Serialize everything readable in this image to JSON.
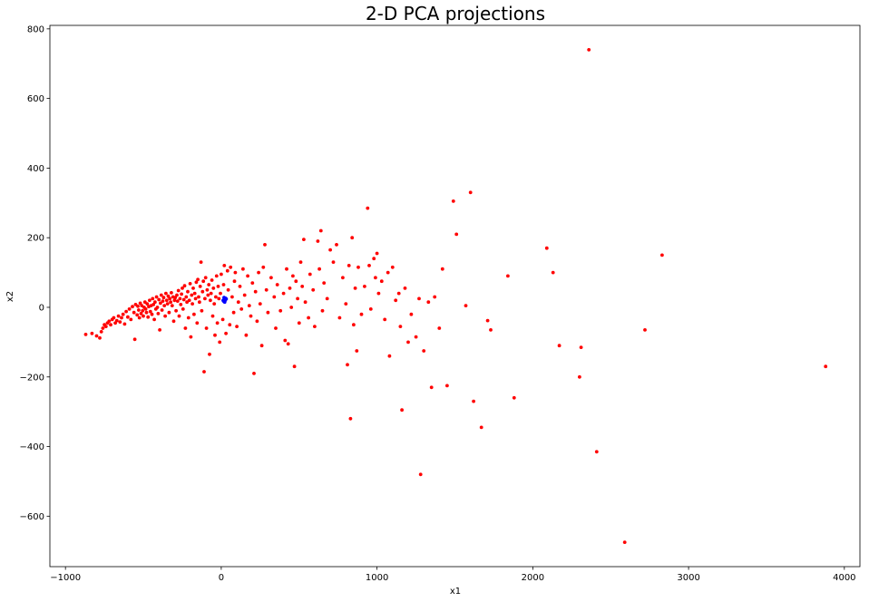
{
  "chart_data": {
    "type": "scatter",
    "title": "2-D PCA projections",
    "xlabel": "x1",
    "ylabel": "x2",
    "xlim": [
      -1100,
      4100
    ],
    "ylim": [
      -745,
      810
    ],
    "xticks": [
      -1000,
      0,
      1000,
      2000,
      3000,
      4000
    ],
    "yticks": [
      -600,
      -400,
      -200,
      0,
      200,
      400,
      600,
      800
    ],
    "grid": false,
    "colors": {
      "main": "#ff0000",
      "highlight": "#0000ff"
    },
    "series": [
      {
        "color": "#ff0000",
        "points": [
          [
            -870,
            -78
          ],
          [
            -830,
            -75
          ],
          [
            -800,
            -82
          ],
          [
            -780,
            -88
          ],
          [
            -770,
            -70
          ],
          [
            -760,
            -60
          ],
          [
            -750,
            -50
          ],
          [
            -740,
            -55
          ],
          [
            -730,
            -45
          ],
          [
            -720,
            -40
          ],
          [
            -710,
            -50
          ],
          [
            -700,
            -35
          ],
          [
            -690,
            -30
          ],
          [
            -680,
            -45
          ],
          [
            -670,
            -38
          ],
          [
            -660,
            -25
          ],
          [
            -650,
            -42
          ],
          [
            -640,
            -30
          ],
          [
            -630,
            -20
          ],
          [
            -620,
            -48
          ],
          [
            -610,
            -12
          ],
          [
            -600,
            -28
          ],
          [
            -590,
            -5
          ],
          [
            -580,
            -35
          ],
          [
            -570,
            2
          ],
          [
            -560,
            -15
          ],
          [
            -555,
            -92
          ],
          [
            -550,
            8
          ],
          [
            -540,
            -22
          ],
          [
            -535,
            3
          ],
          [
            -530,
            -8
          ],
          [
            -525,
            -30
          ],
          [
            -520,
            12
          ],
          [
            -515,
            -18
          ],
          [
            -510,
            5
          ],
          [
            -505,
            -10
          ],
          [
            -500,
            -25
          ],
          [
            -495,
            0
          ],
          [
            -490,
            15
          ],
          [
            -485,
            -5
          ],
          [
            -480,
            -15
          ],
          [
            -475,
            10
          ],
          [
            -470,
            -28
          ],
          [
            -465,
            2
          ],
          [
            -460,
            20
          ],
          [
            -455,
            -12
          ],
          [
            -450,
            5
          ],
          [
            -445,
            -20
          ],
          [
            -440,
            25
          ],
          [
            -435,
            8
          ],
          [
            -430,
            -35
          ],
          [
            -425,
            15
          ],
          [
            -420,
            -5
          ],
          [
            -415,
            30
          ],
          [
            -410,
            0
          ],
          [
            -405,
            -18
          ],
          [
            -400,
            22
          ],
          [
            -395,
            -65
          ],
          [
            -390,
            12
          ],
          [
            -385,
            35
          ],
          [
            -380,
            -8
          ],
          [
            -375,
            18
          ],
          [
            -370,
            28
          ],
          [
            -365,
            5
          ],
          [
            -360,
            -25
          ],
          [
            -355,
            40
          ],
          [
            -350,
            20
          ],
          [
            -345,
            10
          ],
          [
            -340,
            32
          ],
          [
            -335,
            -15
          ],
          [
            -330,
            25
          ],
          [
            -325,
            15
          ],
          [
            -320,
            42
          ],
          [
            -315,
            5
          ],
          [
            -310,
            30
          ],
          [
            -305,
            -40
          ],
          [
            -300,
            20
          ],
          [
            -295,
            28
          ],
          [
            -290,
            -10
          ],
          [
            -285,
            35
          ],
          [
            -280,
            18
          ],
          [
            -275,
            48
          ],
          [
            -270,
            -25
          ],
          [
            -265,
            25
          ],
          [
            -260,
            8
          ],
          [
            -255,
            38
          ],
          [
            -250,
            55
          ],
          [
            -245,
            -5
          ],
          [
            -240,
            22
          ],
          [
            -235,
            62
          ],
          [
            -230,
            -60
          ],
          [
            -225,
            30
          ],
          [
            -220,
            15
          ],
          [
            -215,
            45
          ],
          [
            -210,
            -30
          ],
          [
            -205,
            20
          ],
          [
            -200,
            68
          ],
          [
            -195,
            -85
          ],
          [
            -190,
            35
          ],
          [
            -185,
            10
          ],
          [
            -180,
            55
          ],
          [
            -175,
            -20
          ],
          [
            -170,
            40
          ],
          [
            -165,
            25
          ],
          [
            -160,
            72
          ],
          [
            -155,
            -45
          ],
          [
            -150,
            80
          ],
          [
            -145,
            30
          ],
          [
            -140,
            15
          ],
          [
            -135,
            60
          ],
          [
            -130,
            130
          ],
          [
            -125,
            -10
          ],
          [
            -120,
            45
          ],
          [
            -115,
            75
          ],
          [
            -110,
            -185
          ],
          [
            -105,
            25
          ],
          [
            -100,
            85
          ],
          [
            -95,
            -60
          ],
          [
            -90,
            50
          ],
          [
            -85,
            35
          ],
          [
            -80,
            65
          ],
          [
            -75,
            -135
          ],
          [
            -70,
            20
          ],
          [
            -65,
            40
          ],
          [
            -60,
            78
          ],
          [
            -55,
            -25
          ],
          [
            -50,
            55
          ],
          [
            -45,
            10
          ],
          [
            -40,
            -80
          ],
          [
            -35,
            30
          ],
          [
            -30,
            90
          ],
          [
            -25,
            -45
          ],
          [
            -20,
            60
          ],
          [
            -15,
            25
          ],
          [
            -10,
            -100
          ],
          [
            -5,
            40
          ],
          [
            0,
            95
          ],
          [
            10,
            -35
          ],
          [
            15,
            65
          ],
          [
            20,
            120
          ],
          [
            25,
            20
          ],
          [
            30,
            -75
          ],
          [
            40,
            105
          ],
          [
            45,
            50
          ],
          [
            55,
            -50
          ],
          [
            60,
            115
          ],
          [
            70,
            30
          ],
          [
            80,
            -15
          ],
          [
            85,
            75
          ],
          [
            90,
            100
          ],
          [
            100,
            -55
          ],
          [
            110,
            15
          ],
          [
            120,
            60
          ],
          [
            130,
            -5
          ],
          [
            140,
            110
          ],
          [
            150,
            35
          ],
          [
            160,
            -80
          ],
          [
            170,
            90
          ],
          [
            180,
            5
          ],
          [
            190,
            -25
          ],
          [
            200,
            70
          ],
          [
            210,
            -190
          ],
          [
            220,
            45
          ],
          [
            230,
            -40
          ],
          [
            240,
            100
          ],
          [
            250,
            10
          ],
          [
            260,
            -110
          ],
          [
            270,
            115
          ],
          [
            280,
            180
          ],
          [
            290,
            50
          ],
          [
            300,
            -15
          ],
          [
            320,
            85
          ],
          [
            340,
            30
          ],
          [
            350,
            -60
          ],
          [
            360,
            65
          ],
          [
            380,
            -10
          ],
          [
            400,
            40
          ],
          [
            410,
            -95
          ],
          [
            420,
            110
          ],
          [
            430,
            -105
          ],
          [
            440,
            55
          ],
          [
            450,
            0
          ],
          [
            460,
            90
          ],
          [
            470,
            -170
          ],
          [
            480,
            75
          ],
          [
            490,
            25
          ],
          [
            500,
            -45
          ],
          [
            510,
            130
          ],
          [
            520,
            60
          ],
          [
            530,
            195
          ],
          [
            540,
            15
          ],
          [
            560,
            -30
          ],
          [
            570,
            95
          ],
          [
            590,
            50
          ],
          [
            600,
            -55
          ],
          [
            620,
            190
          ],
          [
            630,
            110
          ],
          [
            640,
            220
          ],
          [
            650,
            -10
          ],
          [
            660,
            70
          ],
          [
            680,
            25
          ],
          [
            700,
            165
          ],
          [
            720,
            130
          ],
          [
            740,
            180
          ],
          [
            760,
            -30
          ],
          [
            780,
            85
          ],
          [
            800,
            10
          ],
          [
            810,
            -165
          ],
          [
            820,
            120
          ],
          [
            830,
            -320
          ],
          [
            840,
            200
          ],
          [
            850,
            -50
          ],
          [
            860,
            55
          ],
          [
            870,
            -125
          ],
          [
            880,
            115
          ],
          [
            900,
            -20
          ],
          [
            920,
            60
          ],
          [
            940,
            285
          ],
          [
            950,
            120
          ],
          [
            960,
            -5
          ],
          [
            980,
            140
          ],
          [
            990,
            85
          ],
          [
            1000,
            155
          ],
          [
            1010,
            40
          ],
          [
            1030,
            75
          ],
          [
            1050,
            -35
          ],
          [
            1070,
            100
          ],
          [
            1080,
            -140
          ],
          [
            1100,
            115
          ],
          [
            1120,
            20
          ],
          [
            1140,
            40
          ],
          [
            1150,
            -55
          ],
          [
            1160,
            -295
          ],
          [
            1180,
            55
          ],
          [
            1200,
            -100
          ],
          [
            1220,
            -20
          ],
          [
            1250,
            -85
          ],
          [
            1270,
            25
          ],
          [
            1280,
            -480
          ],
          [
            1300,
            -125
          ],
          [
            1330,
            15
          ],
          [
            1350,
            -230
          ],
          [
            1370,
            30
          ],
          [
            1400,
            -60
          ],
          [
            1420,
            110
          ],
          [
            1450,
            -225
          ],
          [
            1490,
            305
          ],
          [
            1510,
            210
          ],
          [
            1570,
            5
          ],
          [
            1600,
            330
          ],
          [
            1620,
            -270
          ],
          [
            1670,
            -345
          ],
          [
            1710,
            -38
          ],
          [
            1730,
            -65
          ],
          [
            1840,
            90
          ],
          [
            1880,
            -260
          ],
          [
            2090,
            170
          ],
          [
            2130,
            100
          ],
          [
            2170,
            -110
          ],
          [
            2300,
            -200
          ],
          [
            2310,
            -115
          ],
          [
            2360,
            740
          ],
          [
            2410,
            -415
          ],
          [
            2590,
            -675
          ],
          [
            2720,
            -65
          ],
          [
            2830,
            150
          ],
          [
            3880,
            -170
          ]
        ]
      },
      {
        "color": "#0000ff",
        "points": [
          [
            15,
            18
          ],
          [
            20,
            22
          ],
          [
            25,
            20
          ],
          [
            28,
            26
          ],
          [
            22,
            15
          ],
          [
            32,
            24
          ],
          [
            18,
            28
          ],
          [
            12,
            20
          ]
        ]
      }
    ]
  }
}
